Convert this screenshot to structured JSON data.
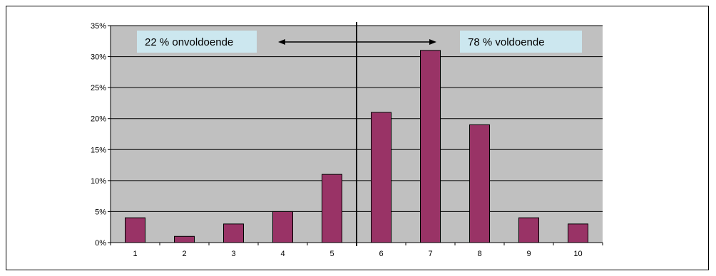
{
  "chart_data": {
    "type": "bar",
    "title": "",
    "xlabel": "",
    "ylabel": "",
    "categories": [
      "1",
      "2",
      "3",
      "4",
      "5",
      "6",
      "7",
      "8",
      "9",
      "10"
    ],
    "values": [
      4,
      1,
      3,
      5,
      11,
      21,
      31,
      19,
      4,
      3
    ],
    "ylim": [
      0,
      35
    ],
    "yticks": [
      0,
      5,
      10,
      15,
      20,
      25,
      30,
      35
    ],
    "ytick_labels": [
      "0%",
      "5%",
      "10%",
      "15%",
      "20%",
      "25%",
      "30%",
      "35%"
    ],
    "grid": true,
    "legend": "none",
    "divider_between": [
      "5",
      "6"
    ],
    "annotations": [
      {
        "text": "22 % onvoldoende",
        "side": "left"
      },
      {
        "text": "78 % voldoende",
        "side": "right"
      }
    ],
    "colors": {
      "bar": "#993366",
      "plot_background": "#c0c0c0",
      "annotation_box": "#cce7ef",
      "gridline": "#000000"
    }
  }
}
